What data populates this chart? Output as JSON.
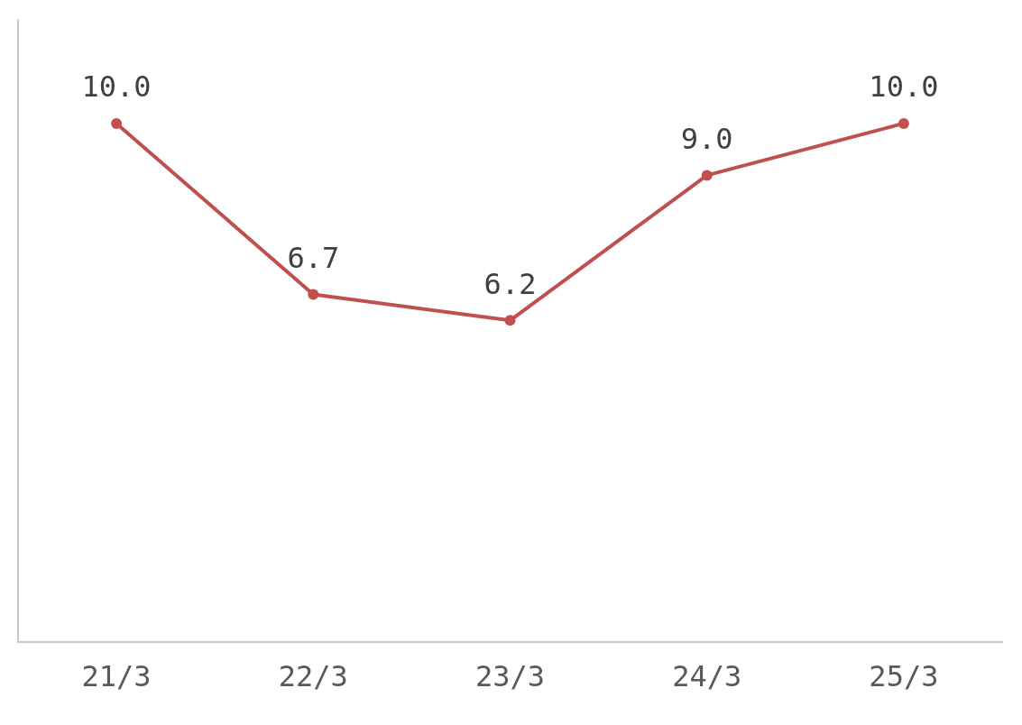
{
  "chart_data": {
    "type": "line",
    "categories": [
      "21/3",
      "22/3",
      "23/3",
      "24/3",
      "25/3"
    ],
    "series": [
      {
        "color": "#c0504d",
        "values": [
          10.0,
          6.7,
          6.2,
          9.0,
          10.0
        ],
        "value_labels": [
          "10.0",
          "6.7",
          "6.2",
          "9.0",
          "10.0"
        ]
      }
    ],
    "ylim": [
      0,
      12
    ],
    "tick_labels": "x",
    "grid": false,
    "legend": false,
    "marker": "circle",
    "line_style": "solid"
  }
}
